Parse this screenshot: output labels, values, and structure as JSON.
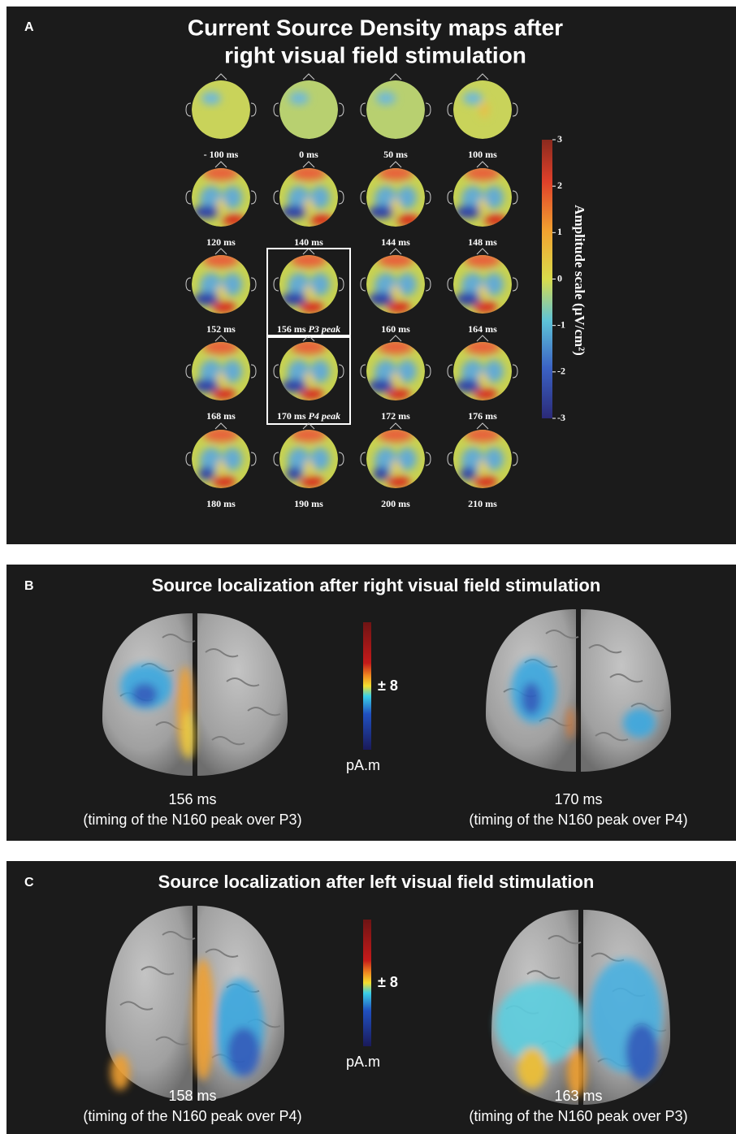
{
  "panel_a": {
    "label": "A",
    "title_lines": [
      "Current Source Density maps after",
      "right visual field stimulation"
    ],
    "maps": [
      {
        "time": "- 100 ms"
      },
      {
        "time": "0 ms"
      },
      {
        "time": "50 ms"
      },
      {
        "time": "100 ms"
      },
      {
        "time": "120 ms"
      },
      {
        "time": "140 ms"
      },
      {
        "time": "144 ms"
      },
      {
        "time": "148 ms"
      },
      {
        "time": "152 ms"
      },
      {
        "time": "156 ms",
        "peak": "P3 peak"
      },
      {
        "time": "160 ms"
      },
      {
        "time": "164 ms"
      },
      {
        "time": "168 ms"
      },
      {
        "time": "170 ms",
        "peak": "P4 peak"
      },
      {
        "time": "172 ms"
      },
      {
        "time": "176 ms"
      },
      {
        "time": "180 ms"
      },
      {
        "time": "190 ms"
      },
      {
        "time": "200 ms"
      },
      {
        "time": "210 ms"
      }
    ],
    "colorbar": {
      "label": "Amplitude scale (μV/cm²)",
      "lim": [
        -3,
        3
      ],
      "ticks": [
        3,
        2,
        1,
        0,
        -1,
        -2,
        -3
      ]
    }
  },
  "panel_b": {
    "label": "B",
    "title": "Source localization after right visual field stimulation",
    "scale_label": "± 8",
    "unit": "pA.m",
    "brains": [
      {
        "time": "156 ms",
        "note": "(timing of the N160 peak over P3)"
      },
      {
        "time": "170 ms",
        "note": "(timing of the N160 peak over P4)"
      }
    ]
  },
  "panel_c": {
    "label": "C",
    "title": "Source localization after left visual field stimulation",
    "scale_label": "± 8",
    "unit": "pA.m",
    "brains": [
      {
        "time": "158 ms",
        "note": "(timing of the N160 peak over P4)"
      },
      {
        "time": "163 ms",
        "note": "(timing of the N160 peak over P3)"
      }
    ]
  }
}
